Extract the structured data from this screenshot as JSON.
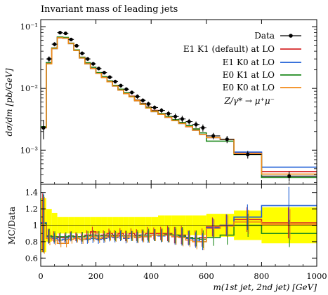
{
  "chart_data": {
    "type": "step-histogram",
    "title": "Invariant mass of leading jets",
    "xlabel": "m(1st jet, 2nd jet) [GeV]",
    "ylabel_main": "dσ/dm [pb/GeV]",
    "ylabel_ratio": "MC/Data",
    "xlim": [
      0,
      1000
    ],
    "ylim_main": [
      0.00028,
      0.13
    ],
    "yscale_main": "log",
    "ylim_ratio": [
      0.5,
      1.5
    ],
    "x_ticks": [
      "0",
      "200",
      "400",
      "600",
      "800",
      "1000"
    ],
    "y_ticks_main": [
      {
        "value": 0.1,
        "label": "10⁻¹"
      },
      {
        "value": 0.01,
        "label": "10⁻²"
      },
      {
        "value": 0.001,
        "label": "10⁻³"
      }
    ],
    "y_ticks_ratio": [
      "0.6",
      "0.8",
      "1",
      "1.2",
      "1.4"
    ],
    "legend_position": "top-right",
    "process_label": "Z/γ* → μ⁺μ⁻",
    "bin_edges": [
      0,
      20,
      40,
      60,
      80,
      100,
      120,
      140,
      160,
      180,
      200,
      220,
      240,
      260,
      280,
      300,
      320,
      340,
      360,
      380,
      400,
      425,
      450,
      475,
      500,
      525,
      550,
      575,
      600,
      650,
      700,
      800,
      1000
    ],
    "data": {
      "name": "Data",
      "color": "#000000",
      "values": [
        0.0023,
        0.03,
        0.052,
        0.08,
        0.078,
        0.062,
        0.049,
        0.037,
        0.03,
        0.025,
        0.021,
        0.018,
        0.0152,
        0.0129,
        0.0111,
        0.0097,
        0.0086,
        0.0074,
        0.0064,
        0.0056,
        0.0049,
        0.0044,
        0.0039,
        0.0035,
        0.0032,
        0.0029,
        0.0026,
        0.0023,
        0.0017,
        0.0015,
        0.00085,
        0.00038
      ],
      "errors": [
        0.0008,
        0.003,
        0.004,
        0.005,
        0.005,
        0.004,
        0.003,
        0.0025,
        0.002,
        0.0017,
        0.0014,
        0.0012,
        0.001,
        0.0009,
        0.0008,
        0.0007,
        0.0006,
        0.0006,
        0.0005,
        0.0005,
        0.0004,
        0.0004,
        0.0004,
        0.0004,
        0.0004,
        0.0003,
        0.0003,
        0.0003,
        0.0002,
        0.0002,
        0.00012,
        7e-05
      ]
    },
    "series": [
      {
        "name": "E1 K1 (default) at LO",
        "color": "#d62728",
        "values": [
          0.0024,
          0.026,
          0.045,
          0.068,
          0.066,
          0.054,
          0.042,
          0.032,
          0.026,
          0.022,
          0.018,
          0.0155,
          0.0132,
          0.0112,
          0.0097,
          0.0085,
          0.0075,
          0.0065,
          0.0057,
          0.005,
          0.0044,
          0.0039,
          0.0035,
          0.0031,
          0.0028,
          0.0025,
          0.0022,
          0.0019,
          0.0016,
          0.0015,
          0.00092,
          0.00045
        ]
      },
      {
        "name": "E1 K0 at LO",
        "color": "#1f5fd6",
        "values": [
          0.0024,
          0.026,
          0.044,
          0.066,
          0.065,
          0.053,
          0.041,
          0.031,
          0.025,
          0.021,
          0.0175,
          0.015,
          0.0128,
          0.0109,
          0.0094,
          0.0082,
          0.0073,
          0.0063,
          0.0055,
          0.0048,
          0.0042,
          0.0038,
          0.0034,
          0.003,
          0.0027,
          0.0024,
          0.0021,
          0.0018,
          0.0016,
          0.0015,
          0.00093,
          0.00053
        ]
      },
      {
        "name": "E0 K1 at LO",
        "color": "#1e8a1e",
        "values": [
          0.0024,
          0.026,
          0.045,
          0.068,
          0.067,
          0.054,
          0.042,
          0.032,
          0.026,
          0.022,
          0.018,
          0.0155,
          0.0132,
          0.0112,
          0.0097,
          0.0085,
          0.0074,
          0.0064,
          0.0056,
          0.0049,
          0.0043,
          0.0039,
          0.0035,
          0.0031,
          0.0028,
          0.0025,
          0.0022,
          0.0019,
          0.0014,
          0.0014,
          0.00085,
          0.00036
        ]
      },
      {
        "name": "E0 K0 at LO",
        "color": "#f28a17",
        "values": [
          0.0023,
          0.025,
          0.044,
          0.066,
          0.065,
          0.053,
          0.041,
          0.031,
          0.025,
          0.021,
          0.0175,
          0.015,
          0.0128,
          0.0109,
          0.0094,
          0.0082,
          0.0073,
          0.0063,
          0.0055,
          0.0048,
          0.0042,
          0.0038,
          0.0034,
          0.003,
          0.0027,
          0.0024,
          0.0021,
          0.0018,
          0.0016,
          0.0015,
          0.00088,
          0.00041
        ]
      }
    ],
    "ratio_band_color": "#ffff00",
    "ratio": {
      "band_half_width": [
        0.33,
        0.2,
        0.15,
        0.1,
        0.1,
        0.1,
        0.1,
        0.1,
        0.1,
        0.1,
        0.1,
        0.1,
        0.1,
        0.1,
        0.1,
        0.1,
        0.1,
        0.1,
        0.1,
        0.1,
        0.1,
        0.12,
        0.12,
        0.12,
        0.12,
        0.12,
        0.12,
        0.12,
        0.14,
        0.14,
        0.18,
        0.22
      ],
      "series": [
        [
          1.03,
          0.87,
          0.86,
          0.85,
          0.85,
          0.87,
          0.86,
          0.86,
          0.88,
          0.92,
          0.87,
          0.88,
          0.9,
          0.88,
          0.9,
          0.87,
          0.9,
          0.88,
          0.88,
          0.9,
          0.9,
          0.9,
          0.9,
          0.88,
          0.88,
          0.85,
          0.84,
          0.85,
          0.98,
          1.0,
          1.07,
          1.03
        ],
        [
          1.03,
          0.86,
          0.84,
          0.82,
          0.83,
          0.86,
          0.84,
          0.83,
          0.83,
          0.84,
          0.83,
          0.84,
          0.86,
          0.85,
          0.87,
          0.84,
          0.87,
          0.85,
          0.86,
          0.86,
          0.88,
          0.87,
          0.88,
          0.86,
          0.86,
          0.84,
          0.82,
          0.8,
          0.97,
          1.0,
          1.1,
          1.24
        ],
        [
          1.02,
          0.87,
          0.86,
          0.86,
          0.86,
          0.87,
          0.86,
          0.86,
          0.87,
          0.88,
          0.87,
          0.87,
          0.88,
          0.87,
          0.88,
          0.87,
          0.87,
          0.87,
          0.88,
          0.88,
          0.88,
          0.88,
          0.89,
          0.88,
          0.87,
          0.85,
          0.84,
          0.83,
          0.85,
          0.88,
          1.0,
          0.9
        ],
        [
          1.0,
          0.84,
          0.82,
          0.78,
          0.78,
          0.83,
          0.84,
          0.83,
          0.84,
          0.86,
          0.84,
          0.85,
          0.87,
          0.86,
          0.88,
          0.85,
          0.87,
          0.85,
          0.86,
          0.86,
          0.88,
          0.88,
          0.88,
          0.86,
          0.85,
          0.82,
          0.8,
          0.8,
          0.96,
          0.99,
          1.04,
          1.01
        ]
      ]
    }
  }
}
